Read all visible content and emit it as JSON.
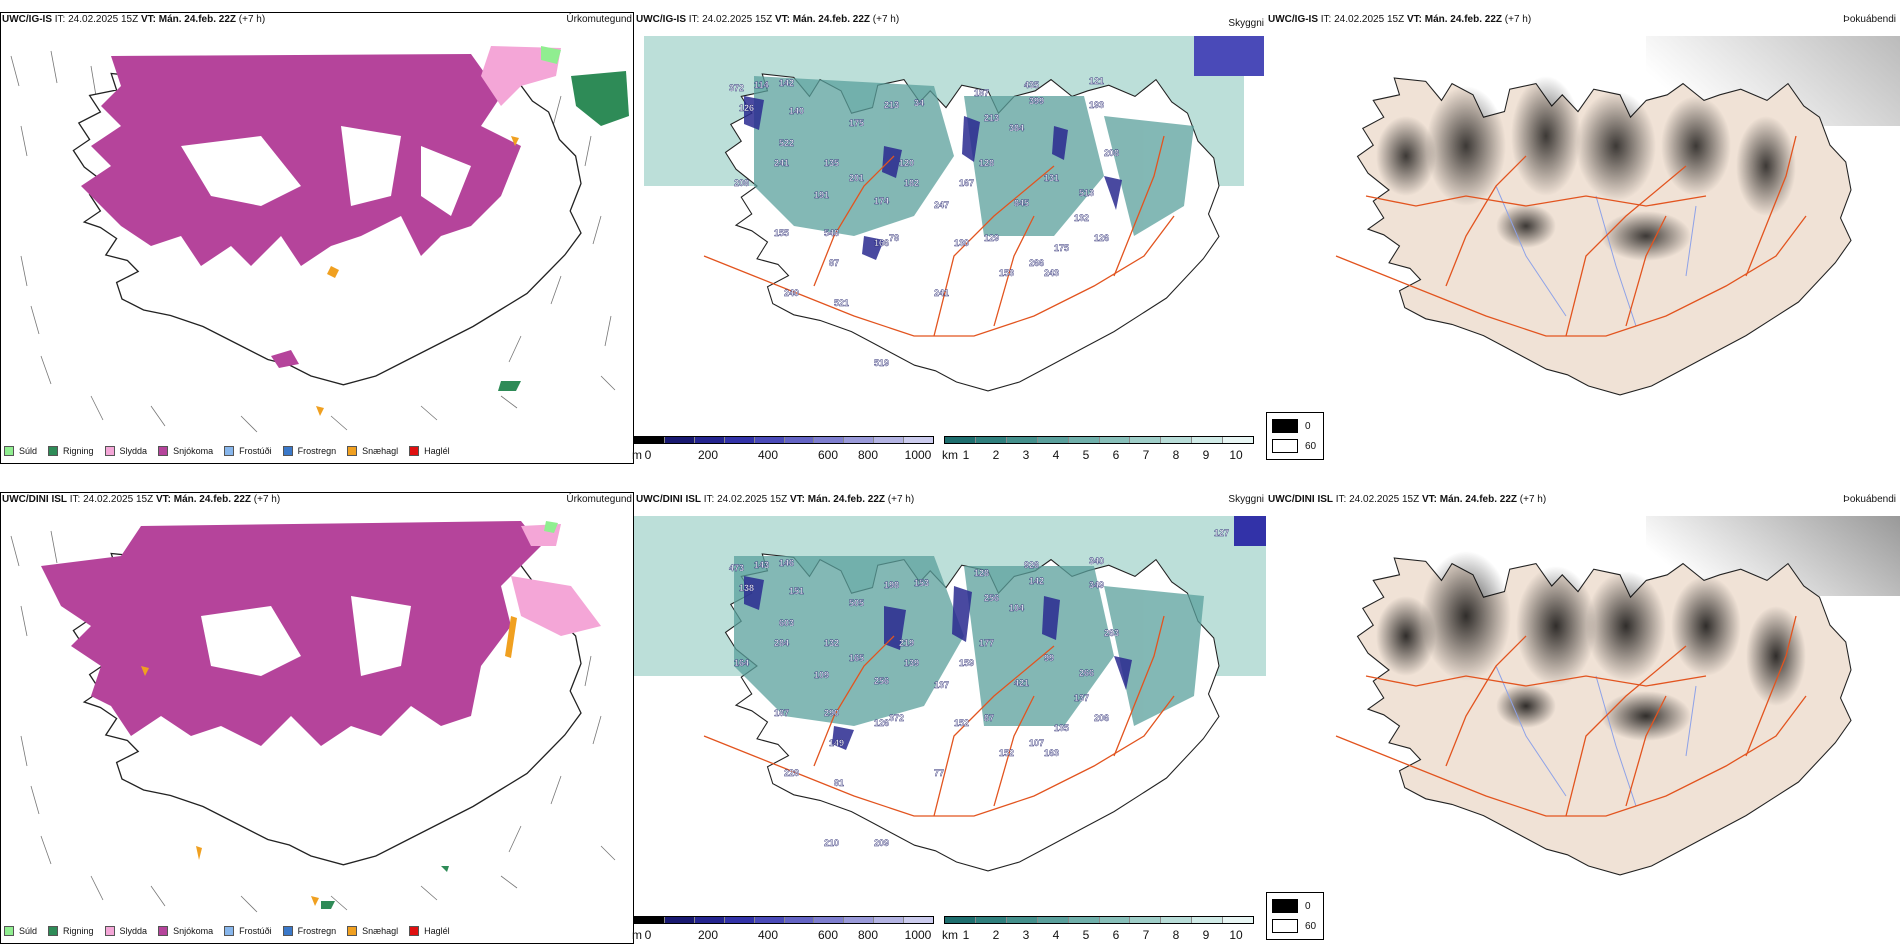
{
  "header": {
    "it_label": "IT:",
    "issue_time": "24.02.2025 15Z",
    "vt_label": "VT:",
    "valid_time": "Mán. 24.feb. 22Z",
    "lead": "(+7 h)"
  },
  "rows": [
    {
      "model": "UWC/IG-IS",
      "precip_title": "Úrkomutegund",
      "cloud_title": "Skyggni",
      "fog_title": "Þokuábendi",
      "peaks": [
        {
          "value": "372"
        },
        {
          "value": "114"
        },
        {
          "value": "142"
        },
        {
          "value": "126"
        },
        {
          "value": "140"
        },
        {
          "value": "175"
        },
        {
          "value": "213"
        },
        {
          "value": "34"
        },
        {
          "value": "187"
        },
        {
          "value": "435"
        },
        {
          "value": "399"
        },
        {
          "value": "121"
        },
        {
          "value": "193"
        },
        {
          "value": "213"
        },
        {
          "value": "384"
        },
        {
          "value": "522"
        },
        {
          "value": "241"
        },
        {
          "value": "135"
        },
        {
          "value": "201"
        },
        {
          "value": "120"
        },
        {
          "value": "182"
        },
        {
          "value": "167"
        },
        {
          "value": "128"
        },
        {
          "value": "131"
        },
        {
          "value": "513"
        },
        {
          "value": "208"
        },
        {
          "value": "208"
        },
        {
          "value": "191"
        },
        {
          "value": "174"
        },
        {
          "value": "247"
        },
        {
          "value": "845"
        },
        {
          "value": "132"
        },
        {
          "value": "126"
        },
        {
          "value": "548"
        },
        {
          "value": "155"
        },
        {
          "value": "166"
        },
        {
          "value": "87"
        },
        {
          "value": "78"
        },
        {
          "value": "130"
        },
        {
          "value": "129"
        },
        {
          "value": "175"
        },
        {
          "value": "266"
        },
        {
          "value": "153"
        },
        {
          "value": "243"
        },
        {
          "value": "241"
        },
        {
          "value": "521"
        },
        {
          "value": "240"
        },
        {
          "value": "519"
        }
      ]
    },
    {
      "model": "UWC/DINI ISL",
      "precip_title": "Úrkomutegund",
      "cloud_title": "Skyggni",
      "fog_title": "Þokuábendi",
      "peaks": [
        {
          "value": "473"
        },
        {
          "value": "143"
        },
        {
          "value": "146"
        },
        {
          "value": "138"
        },
        {
          "value": "151"
        },
        {
          "value": "505"
        },
        {
          "value": "198"
        },
        {
          "value": "153"
        },
        {
          "value": "128"
        },
        {
          "value": "926"
        },
        {
          "value": "142"
        },
        {
          "value": "340"
        },
        {
          "value": "349"
        },
        {
          "value": "256"
        },
        {
          "value": "104"
        },
        {
          "value": "603"
        },
        {
          "value": "284"
        },
        {
          "value": "132"
        },
        {
          "value": "165"
        },
        {
          "value": "219"
        },
        {
          "value": "139"
        },
        {
          "value": "159"
        },
        {
          "value": "177"
        },
        {
          "value": "99"
        },
        {
          "value": "266"
        },
        {
          "value": "263"
        },
        {
          "value": "164"
        },
        {
          "value": "109"
        },
        {
          "value": "256"
        },
        {
          "value": "137"
        },
        {
          "value": "421"
        },
        {
          "value": "137"
        },
        {
          "value": "206"
        },
        {
          "value": "290"
        },
        {
          "value": "187"
        },
        {
          "value": "126"
        },
        {
          "value": "149"
        },
        {
          "value": "372"
        },
        {
          "value": "152"
        },
        {
          "value": "87"
        },
        {
          "value": "135"
        },
        {
          "value": "107"
        },
        {
          "value": "152"
        },
        {
          "value": "163"
        },
        {
          "value": "77"
        },
        {
          "value": "81"
        },
        {
          "value": "228"
        },
        {
          "value": "209"
        },
        {
          "value": "210"
        },
        {
          "value": "127"
        }
      ]
    }
  ],
  "precip_legend": [
    {
      "label": "Súld",
      "color": "#90ee90"
    },
    {
      "label": "Rigning",
      "color": "#2e8b57"
    },
    {
      "label": "Slydda",
      "color": "#f4a6d7"
    },
    {
      "label": "Snjókoma",
      "color": "#b5449b"
    },
    {
      "label": "Frostúði",
      "color": "#87b6ec"
    },
    {
      "label": "Frostregn",
      "color": "#3a78c9"
    },
    {
      "label": "Snæhagl",
      "color": "#f0a020"
    },
    {
      "label": "Haglél",
      "color": "#e01010"
    }
  ],
  "cloud_scale": {
    "unit": "m",
    "ticks": [
      "0",
      "200",
      "400",
      "600",
      "800",
      "1000"
    ],
    "colors": [
      "#000000",
      "#181870",
      "#24248f",
      "#3232a8",
      "#4a4ab8",
      "#6464c4",
      "#7e7ecf",
      "#9a9ad9",
      "#b4b4e3",
      "#ccccee"
    ]
  },
  "vis_scale": {
    "unit": "km",
    "ticks": [
      "1",
      "2",
      "3",
      "4",
      "5",
      "6",
      "7",
      "8",
      "9",
      "10"
    ],
    "colors": [
      "#1e6e6e",
      "#2f7f7d",
      "#44908c",
      "#5aa09c",
      "#70b0ab",
      "#88c0ba",
      "#a0cfc9",
      "#b8ddd8",
      "#d0ebe7",
      "#e8f6f4"
    ]
  },
  "fog_legend": {
    "high": "0",
    "low": "60",
    "high_color": "#000000",
    "low_color": "#ffffff"
  },
  "colors": {
    "snow": "#b5449b",
    "sleet": "#f4a6d7",
    "rain": "#2e8b57",
    "drizzle": "#90ee90",
    "roads": "#e2541f",
    "land": "#f0e2d6",
    "vis_fill": "#5aa09c",
    "cloud_fill": "#2a2a90"
  }
}
